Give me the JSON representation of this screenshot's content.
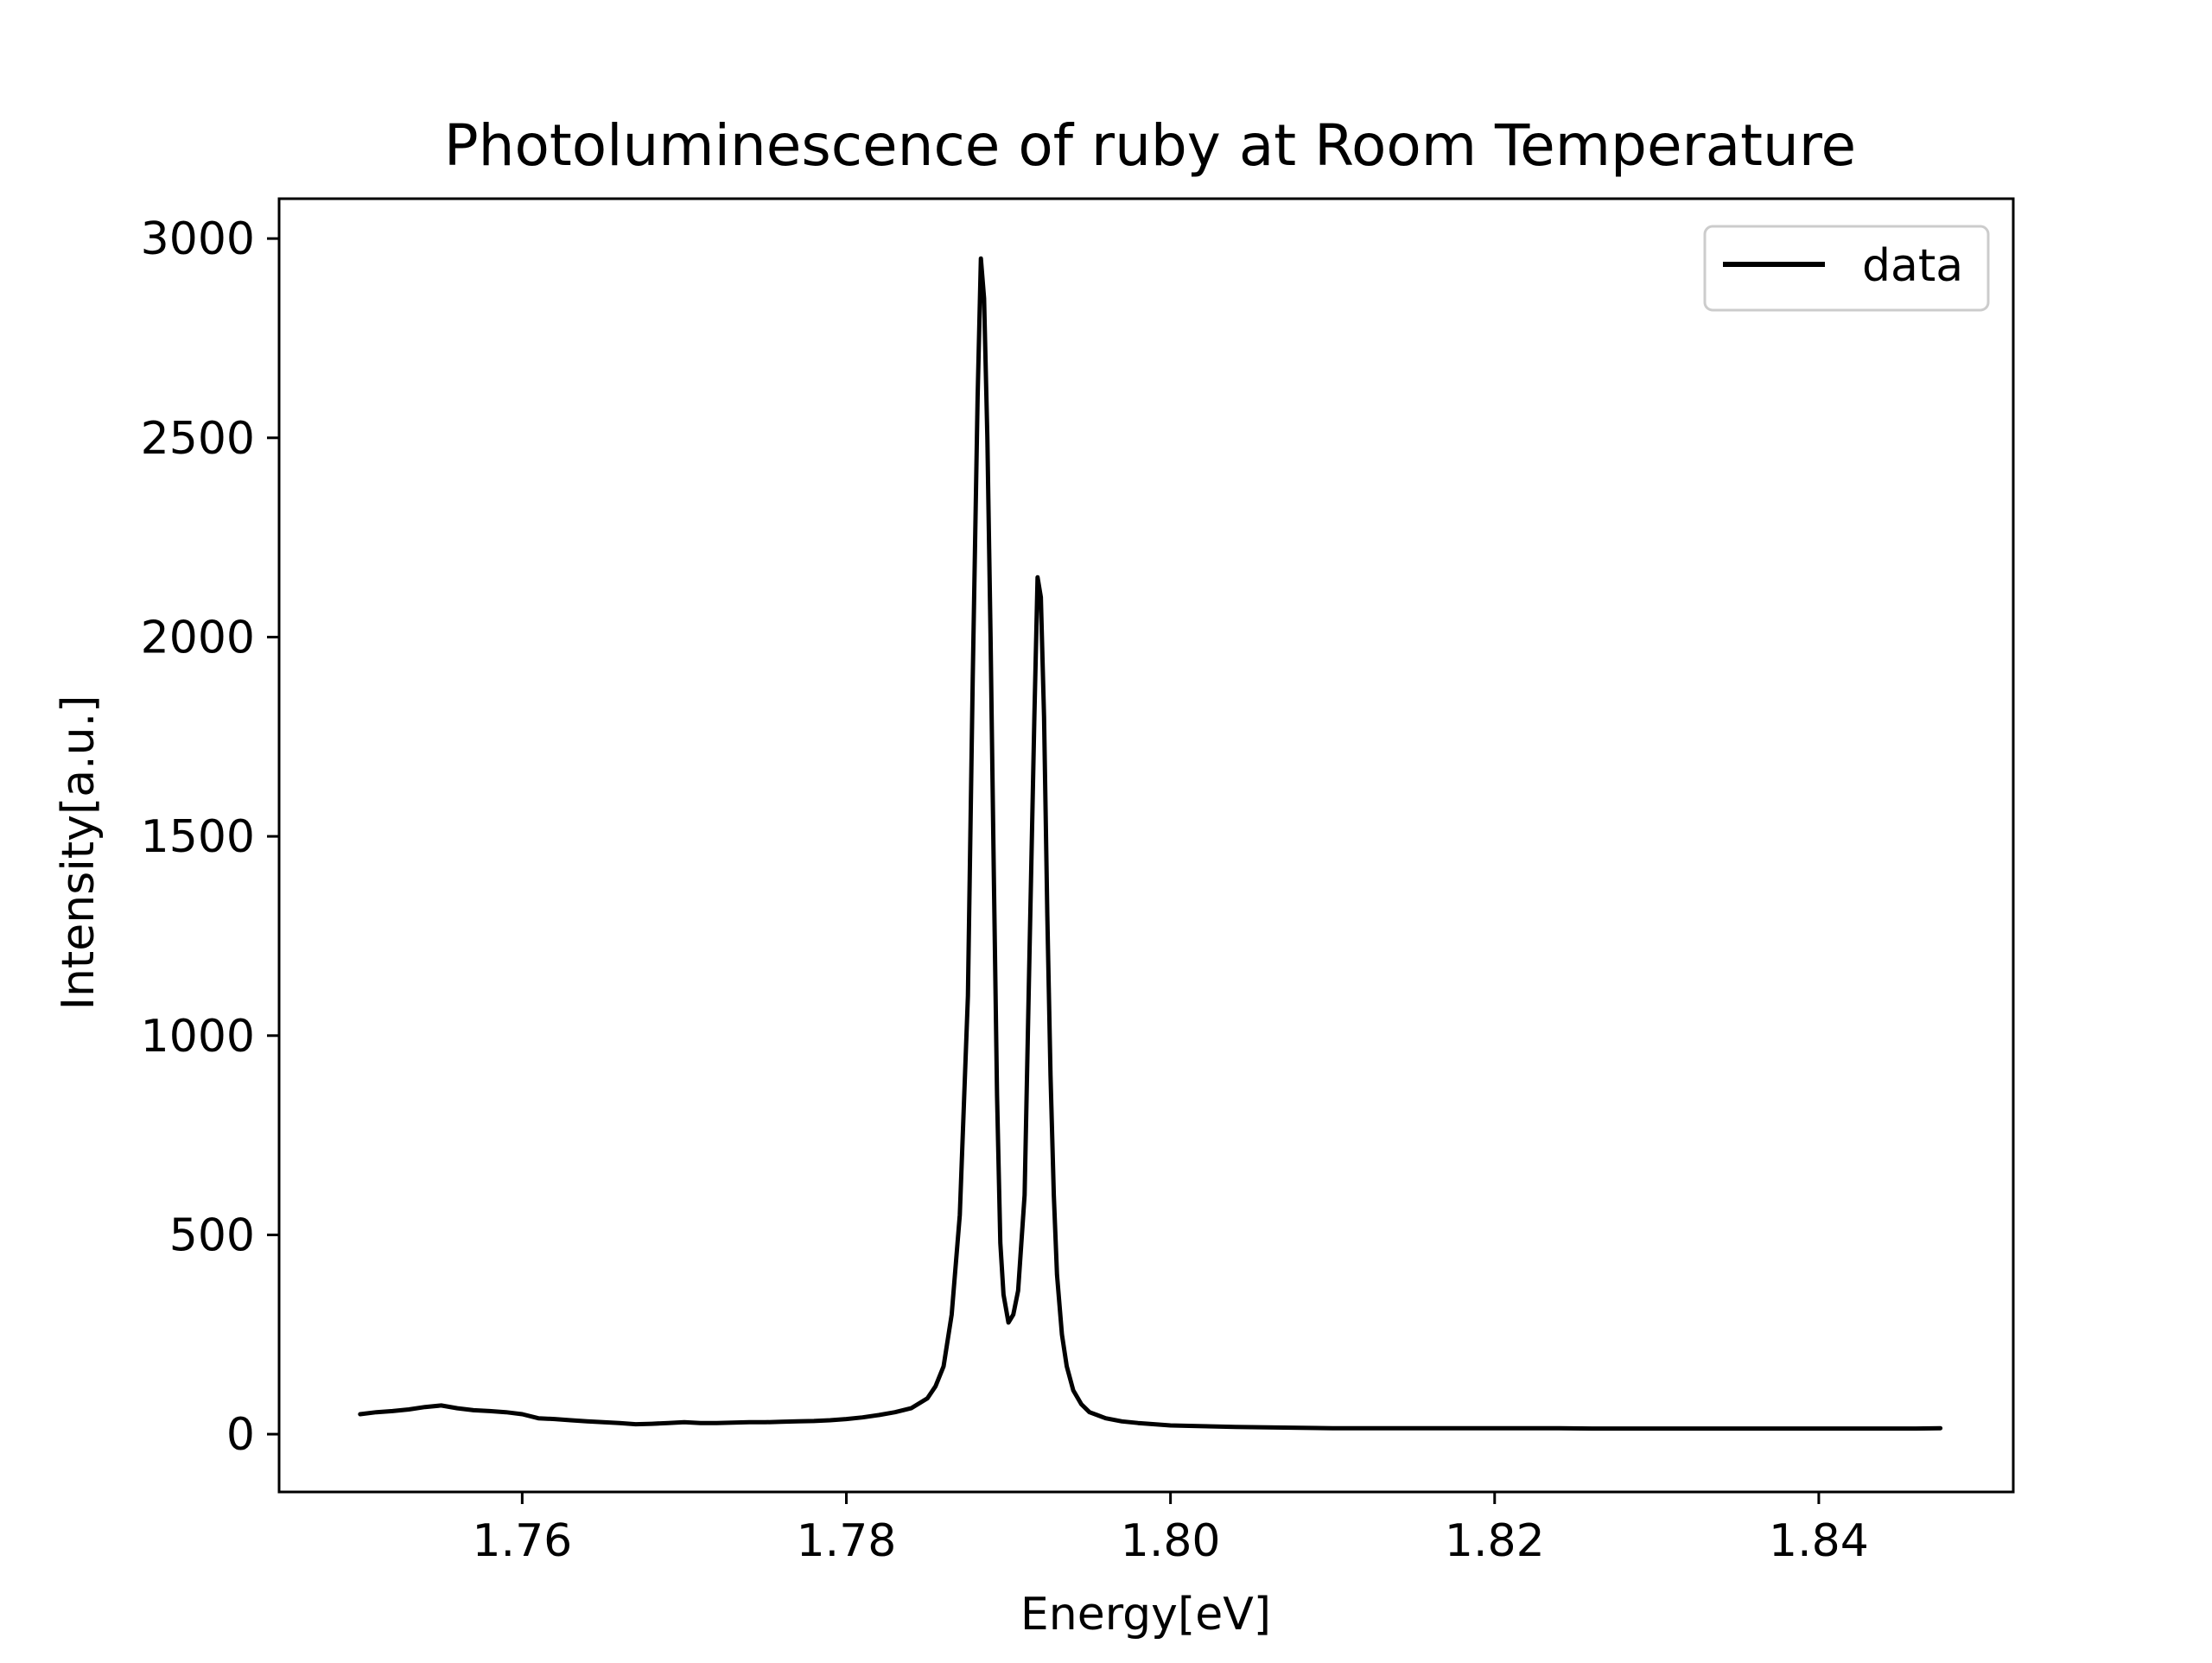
{
  "chart_data": {
    "type": "line",
    "title": "Photoluminescence of ruby at Room Temperature",
    "xlabel": "Energy[eV]",
    "ylabel": "Intensity[a.u.]",
    "xlim": [
      1.745,
      1.852
    ],
    "ylim": [
      -145,
      3100
    ],
    "xticks": [
      1.76,
      1.78,
      1.8,
      1.82,
      1.84
    ],
    "xtick_labels": [
      "1.76",
      "1.78",
      "1.80",
      "1.82",
      "1.84"
    ],
    "yticks": [
      0,
      500,
      1000,
      1500,
      2000,
      2500,
      3000
    ],
    "ytick_labels": [
      "0",
      "500",
      "1000",
      "1500",
      "2000",
      "2500",
      "3000"
    ],
    "grid": false,
    "legend": {
      "placement": "top-right",
      "entries": [
        "data"
      ]
    },
    "series": [
      {
        "name": "data",
        "color": "#000000",
        "x": [
          1.75,
          1.751,
          1.752,
          1.753,
          1.754,
          1.755,
          1.756,
          1.757,
          1.758,
          1.759,
          1.76,
          1.761,
          1.762,
          1.763,
          1.764,
          1.765,
          1.766,
          1.767,
          1.768,
          1.769,
          1.77,
          1.771,
          1.772,
          1.773,
          1.774,
          1.775,
          1.776,
          1.777,
          1.778,
          1.779,
          1.78,
          1.781,
          1.782,
          1.783,
          1.784,
          1.785,
          1.7855,
          1.786,
          1.7865,
          1.787,
          1.7875,
          1.7878,
          1.7881,
          1.7883,
          1.7885,
          1.7887,
          1.7889,
          1.7891,
          1.7893,
          1.7895,
          1.7897,
          1.79,
          1.7903,
          1.7906,
          1.791,
          1.7913,
          1.7916,
          1.7918,
          1.792,
          1.7922,
          1.7924,
          1.7926,
          1.7928,
          1.793,
          1.7933,
          1.7936,
          1.794,
          1.7945,
          1.795,
          1.796,
          1.797,
          1.798,
          1.799,
          1.8,
          1.802,
          1.804,
          1.806,
          1.808,
          1.81,
          1.812,
          1.814,
          1.816,
          1.818,
          1.82,
          1.822,
          1.824,
          1.826,
          1.828,
          1.83,
          1.832,
          1.834,
          1.836,
          1.838,
          1.84,
          1.842,
          1.844,
          1.846,
          1.8475
        ],
        "y": [
          50,
          55,
          58,
          62,
          68,
          72,
          65,
          60,
          58,
          55,
          50,
          40,
          38,
          35,
          32,
          30,
          28,
          25,
          26,
          28,
          30,
          28,
          28,
          29,
          30,
          30,
          31,
          32,
          33,
          35,
          38,
          42,
          48,
          55,
          65,
          90,
          120,
          170,
          300,
          550,
          1100,
          1900,
          2600,
          2950,
          2850,
          2500,
          2000,
          1400,
          850,
          480,
          350,
          280,
          300,
          360,
          600,
          1200,
          1800,
          2150,
          2100,
          1800,
          1300,
          900,
          600,
          400,
          250,
          170,
          110,
          75,
          55,
          40,
          32,
          28,
          25,
          22,
          20,
          18,
          17,
          16,
          15,
          15,
          15,
          15,
          15,
          15,
          15,
          15,
          14,
          14,
          14,
          14,
          14,
          14,
          14,
          14,
          14,
          14,
          14,
          15
        ]
      }
    ]
  }
}
